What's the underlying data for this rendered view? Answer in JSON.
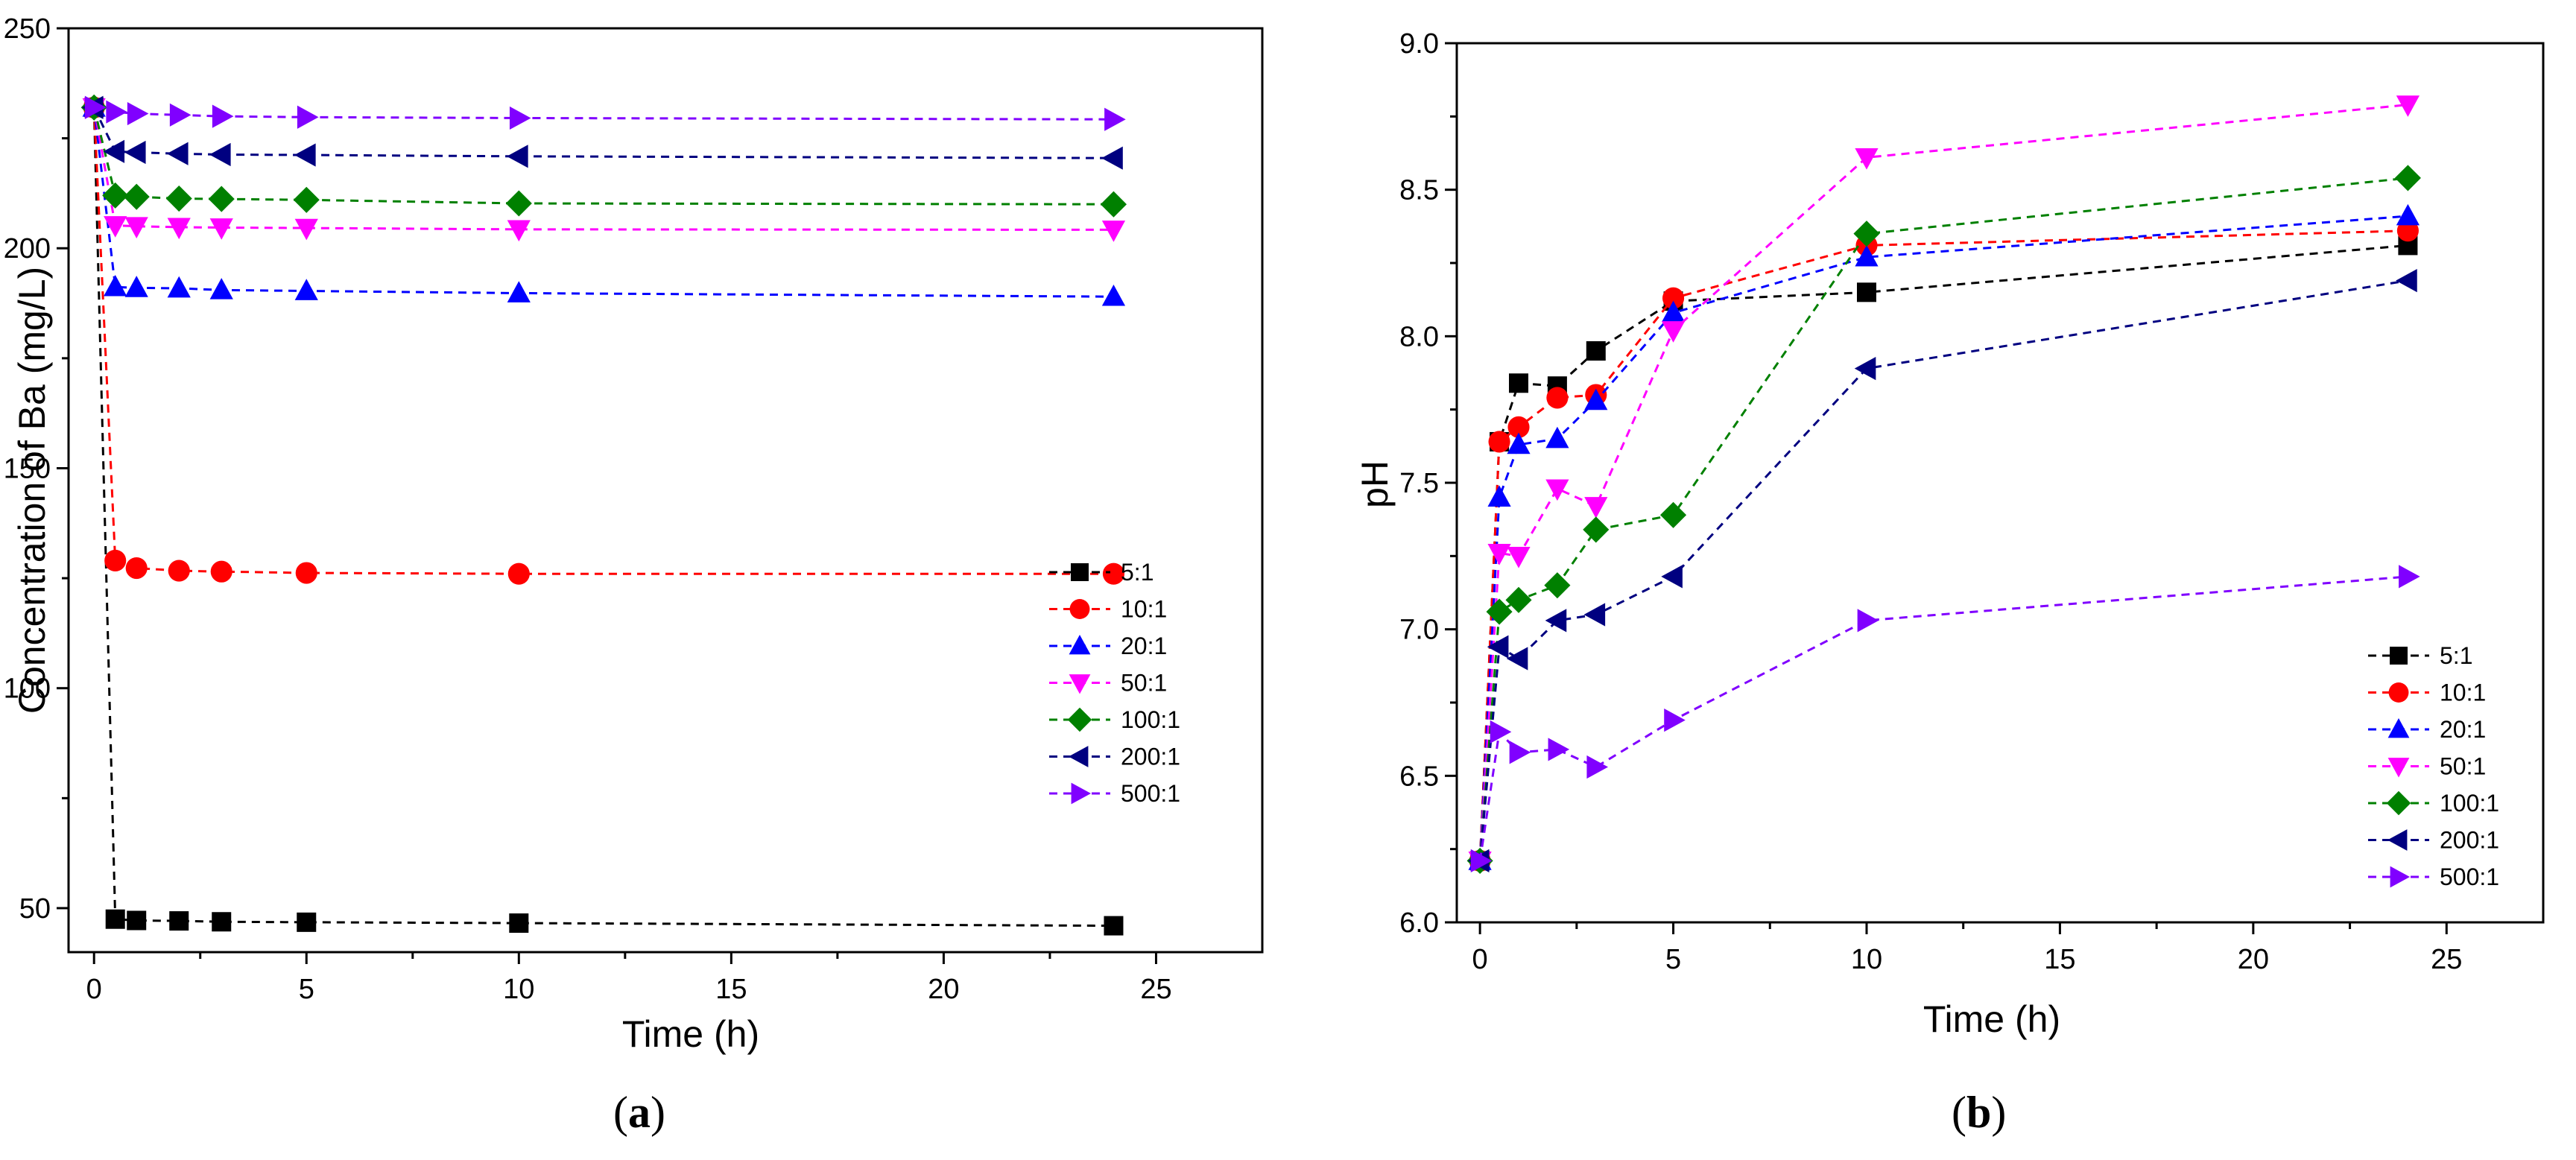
{
  "chart_data": [
    {
      "type": "line",
      "panel_label": "a",
      "xlabel": "Time (h)",
      "ylabel": "Concentration of Ba (mg/L)",
      "xlim": [
        -0.6,
        27.5
      ],
      "ylim": [
        40,
        250
      ],
      "xticks": [
        0,
        5,
        10,
        15,
        20,
        25
      ],
      "yticks": [
        50,
        100,
        150,
        200,
        250
      ],
      "legend_position": "bottom-right",
      "x": [
        0,
        0.5,
        1,
        2,
        3,
        5,
        10,
        24
      ],
      "series": [
        {
          "name": "5:1",
          "color": "#000000",
          "marker": "square",
          "values": [
            232,
            47.5,
            47.2,
            47.1,
            46.9,
            46.8,
            46.6,
            46.0
          ]
        },
        {
          "name": "10:1",
          "color": "#ff0000",
          "marker": "circle",
          "values": [
            232,
            129,
            127.3,
            126.7,
            126.5,
            126.2,
            126.0,
            126.0
          ]
        },
        {
          "name": "20:1",
          "color": "#0000ff",
          "marker": "triangle-up",
          "values": [
            232,
            191.2,
            191.0,
            190.9,
            190.5,
            190.3,
            189.8,
            189.0
          ]
        },
        {
          "name": "50:1",
          "color": "#ff00ff",
          "marker": "triangle-down",
          "values": [
            232,
            205.2,
            205.0,
            204.8,
            204.7,
            204.6,
            204.3,
            204.2
          ]
        },
        {
          "name": "100:1",
          "color": "#008000",
          "marker": "diamond",
          "values": [
            232,
            212,
            211.7,
            211.3,
            211.2,
            211.0,
            210.2,
            210.0
          ]
        },
        {
          "name": "200:1",
          "color": "#000080",
          "marker": "triangle-left",
          "values": [
            232,
            222,
            221.8,
            221.5,
            221.3,
            221.2,
            220.9,
            220.5
          ]
        },
        {
          "name": "500:1",
          "color": "#8000ff",
          "marker": "triangle-right",
          "values": [
            232,
            231,
            230.6,
            230.3,
            230.0,
            229.8,
            229.6,
            229.3
          ]
        }
      ]
    },
    {
      "type": "line",
      "panel_label": "b",
      "xlabel": "Time (h)",
      "ylabel": "pH",
      "xlim": [
        -0.6,
        27.5
      ],
      "ylim": [
        6.0,
        9.0
      ],
      "xticks": [
        0,
        5,
        10,
        15,
        20,
        25
      ],
      "yticks": [
        6.0,
        6.5,
        7.0,
        7.5,
        8.0,
        8.5,
        9.0
      ],
      "legend_position": "bottom-right",
      "x": [
        0,
        0.5,
        1,
        2,
        3,
        5,
        10,
        24
      ],
      "series": [
        {
          "name": "5:1",
          "color": "#000000",
          "marker": "square",
          "values": [
            6.21,
            7.64,
            7.84,
            7.83,
            7.95,
            8.12,
            8.15,
            8.31
          ]
        },
        {
          "name": "10:1",
          "color": "#ff0000",
          "marker": "circle",
          "values": [
            6.21,
            7.64,
            7.69,
            7.79,
            7.8,
            8.13,
            8.31,
            8.36
          ]
        },
        {
          "name": "20:1",
          "color": "#0000ff",
          "marker": "triangle-up",
          "values": [
            6.21,
            7.45,
            7.63,
            7.65,
            7.78,
            8.08,
            8.27,
            8.41
          ]
        },
        {
          "name": "50:1",
          "color": "#ff00ff",
          "marker": "triangle-down",
          "values": [
            6.21,
            7.26,
            7.25,
            7.48,
            7.42,
            8.02,
            8.61,
            8.79
          ]
        },
        {
          "name": "100:1",
          "color": "#008000",
          "marker": "diamond",
          "values": [
            6.21,
            7.06,
            7.1,
            7.15,
            7.34,
            7.39,
            8.35,
            8.54
          ]
        },
        {
          "name": "200:1",
          "color": "#000080",
          "marker": "triangle-left",
          "values": [
            6.21,
            6.94,
            6.9,
            7.03,
            7.05,
            7.18,
            7.89,
            8.19
          ]
        },
        {
          "name": "500:1",
          "color": "#8000ff",
          "marker": "triangle-right",
          "values": [
            6.21,
            6.65,
            6.58,
            6.59,
            6.53,
            6.69,
            7.03,
            7.18
          ]
        }
      ]
    }
  ]
}
